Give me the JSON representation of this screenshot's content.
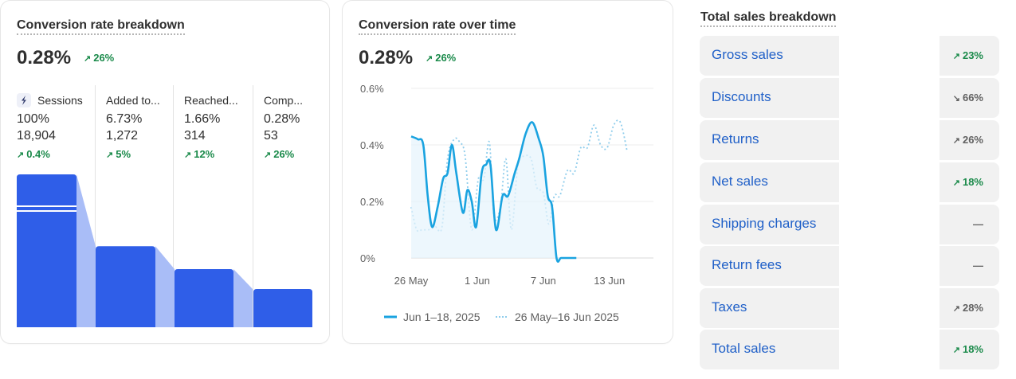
{
  "conversion_breakdown": {
    "title": "Conversion rate breakdown",
    "value": "0.28%",
    "delta_arrow": "↗",
    "delta": "26%",
    "stages": [
      {
        "icon": "sessions-icon",
        "label": "Sessions",
        "percent": "100%",
        "count": "18,904",
        "delta_arrow": "↗",
        "delta": "0.4%",
        "bar_fraction": 1.0
      },
      {
        "label": "Added to...",
        "percent": "6.73%",
        "count": "1,272",
        "delta_arrow": "↗",
        "delta": "5%",
        "bar_fraction": 0.53
      },
      {
        "label": "Reached...",
        "percent": "1.66%",
        "count": "314",
        "delta_arrow": "↗",
        "delta": "12%",
        "bar_fraction": 0.38
      },
      {
        "label": "Comp...",
        "percent": "0.28%",
        "count": "53",
        "delta_arrow": "↗",
        "delta": "26%",
        "bar_fraction": 0.25
      }
    ],
    "colors": {
      "bar": "#2f5ee8",
      "connector": "#a9bdf7"
    }
  },
  "conversion_over_time": {
    "title": "Conversion rate over time",
    "value": "0.28%",
    "delta_arrow": "↗",
    "delta": "26%",
    "legend": [
      {
        "label": "Jun 1–18, 2025",
        "style": "solid",
        "color": "#1aa3e0"
      },
      {
        "label": "26 May–16 Jun 2025",
        "style": "dotted",
        "color": "#8fcdec"
      }
    ]
  },
  "chart_data": {
    "type": "line",
    "title": "Conversion rate over time",
    "xlabel": "",
    "ylabel": "",
    "x_ticks": [
      "26 May",
      "1 Jun",
      "7 Jun",
      "13 Jun"
    ],
    "y_ticks": [
      "0%",
      "0.2%",
      "0.4%",
      "0.6%"
    ],
    "ylim": [
      0,
      0.6
    ],
    "grid": true,
    "x_domain": [
      0,
      22
    ],
    "series": [
      {
        "name": "Jun 1–18, 2025",
        "style": "solid",
        "x": [
          0,
          0.6,
          1.1,
          1.5,
          1.9,
          2.4,
          2.9,
          3.3,
          3.7,
          4.1,
          4.7,
          5.1,
          5.5,
          5.9,
          6.4,
          6.8,
          7.2,
          7.7,
          8.3,
          8.8,
          9.4,
          9.8,
          10.4,
          11.0,
          11.6,
          12.0,
          12.4,
          12.8,
          13.2,
          13.6,
          14.1,
          14.5,
          15.0
        ],
        "y": [
          0.43,
          0.42,
          0.4,
          0.22,
          0.11,
          0.18,
          0.28,
          0.3,
          0.4,
          0.3,
          0.16,
          0.24,
          0.2,
          0.11,
          0.3,
          0.33,
          0.33,
          0.1,
          0.22,
          0.22,
          0.3,
          0.35,
          0.44,
          0.48,
          0.42,
          0.36,
          0.22,
          0.18,
          0.0,
          0.0,
          0.0,
          0.0,
          0.0
        ]
      },
      {
        "name": "26 May–16 Jun 2025",
        "style": "dotted",
        "x": [
          0,
          0.5,
          1.0,
          1.6,
          2.2,
          2.8,
          3.3,
          3.9,
          4.4,
          4.9,
          5.5,
          6.1,
          6.6,
          7.1,
          7.5,
          8.1,
          8.6,
          9.1,
          9.7,
          10.3,
          10.9,
          11.4,
          12.0,
          12.5,
          13.0,
          13.5,
          14.2,
          14.8,
          15.4,
          16.0,
          16.6,
          17.2,
          17.8,
          18.4,
          19.0,
          19.6
        ],
        "y": [
          0.18,
          0.1,
          0.1,
          0.1,
          0.11,
          0.11,
          0.35,
          0.42,
          0.41,
          0.36,
          0.1,
          0.28,
          0.28,
          0.41,
          0.15,
          0.18,
          0.35,
          0.1,
          0.33,
          0.36,
          0.35,
          0.25,
          0.23,
          0.12,
          0.22,
          0.22,
          0.31,
          0.3,
          0.39,
          0.39,
          0.47,
          0.4,
          0.39,
          0.47,
          0.48,
          0.38
        ]
      }
    ]
  },
  "sales_breakdown": {
    "title": "Total sales breakdown",
    "rows": [
      {
        "label": "Gross sales",
        "delta_arrow": "↗",
        "delta": "23%",
        "tone": "pos"
      },
      {
        "label": "Discounts",
        "delta_arrow": "↘",
        "delta": "66%",
        "tone": "neu"
      },
      {
        "label": "Returns",
        "delta_arrow": "↗",
        "delta": "26%",
        "tone": "neu"
      },
      {
        "label": "Net sales",
        "delta_arrow": "↗",
        "delta": "18%",
        "tone": "pos"
      },
      {
        "label": "Shipping charges",
        "delta_arrow": "",
        "delta": "—",
        "tone": "neu"
      },
      {
        "label": "Return fees",
        "delta_arrow": "",
        "delta": "—",
        "tone": "neu"
      },
      {
        "label": "Taxes",
        "delta_arrow": "↗",
        "delta": "28%",
        "tone": "neu"
      },
      {
        "label": "Total sales",
        "delta_arrow": "↗",
        "delta": "18%",
        "tone": "pos"
      }
    ]
  }
}
